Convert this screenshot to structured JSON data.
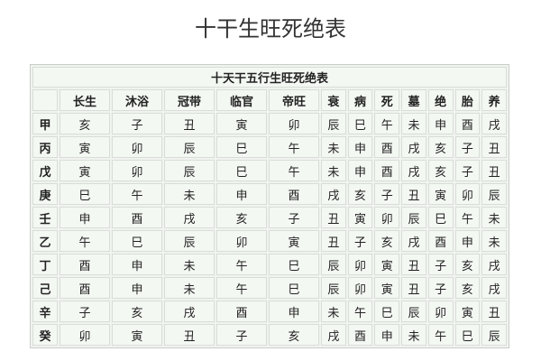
{
  "page_title": "十干生旺死绝表",
  "table": {
    "caption": "十天干五行生旺死绝表",
    "columns": [
      "长生",
      "沐浴",
      "冠带",
      "临官",
      "帝旺",
      "衰",
      "病",
      "死",
      "墓",
      "绝",
      "胎",
      "养"
    ],
    "rows": [
      {
        "stem": "甲",
        "cells": [
          "亥",
          "子",
          "丑",
          "寅",
          "卯",
          "辰",
          "巳",
          "午",
          "未",
          "申",
          "酉",
          "戌"
        ]
      },
      {
        "stem": "丙",
        "cells": [
          "寅",
          "卯",
          "辰",
          "巳",
          "午",
          "未",
          "申",
          "酉",
          "戌",
          "亥",
          "子",
          "丑"
        ]
      },
      {
        "stem": "戊",
        "cells": [
          "寅",
          "卯",
          "辰",
          "巳",
          "午",
          "未",
          "申",
          "酉",
          "戌",
          "亥",
          "子",
          "丑"
        ]
      },
      {
        "stem": "庚",
        "cells": [
          "巳",
          "午",
          "未",
          "申",
          "酉",
          "戌",
          "亥",
          "子",
          "丑",
          "寅",
          "卯",
          "辰"
        ]
      },
      {
        "stem": "壬",
        "cells": [
          "申",
          "酉",
          "戌",
          "亥",
          "子",
          "丑",
          "寅",
          "卯",
          "辰",
          "巳",
          "午",
          "未"
        ]
      },
      {
        "stem": "乙",
        "cells": [
          "午",
          "巳",
          "辰",
          "卯",
          "寅",
          "丑",
          "子",
          "亥",
          "戌",
          "酉",
          "申",
          "未"
        ]
      },
      {
        "stem": "丁",
        "cells": [
          "酉",
          "申",
          "未",
          "午",
          "巳",
          "辰",
          "卯",
          "寅",
          "丑",
          "子",
          "亥",
          "戌"
        ]
      },
      {
        "stem": "己",
        "cells": [
          "酉",
          "申",
          "未",
          "午",
          "巳",
          "辰",
          "卯",
          "寅",
          "丑",
          "子",
          "亥",
          "戌"
        ]
      },
      {
        "stem": "辛",
        "cells": [
          "子",
          "亥",
          "戌",
          "酉",
          "申",
          "未",
          "午",
          "巳",
          "辰",
          "卯",
          "寅",
          "丑"
        ]
      },
      {
        "stem": "癸",
        "cells": [
          "卯",
          "寅",
          "丑",
          "子",
          "亥",
          "戌",
          "酉",
          "申",
          "未",
          "午",
          "巳",
          "辰"
        ]
      }
    ]
  }
}
